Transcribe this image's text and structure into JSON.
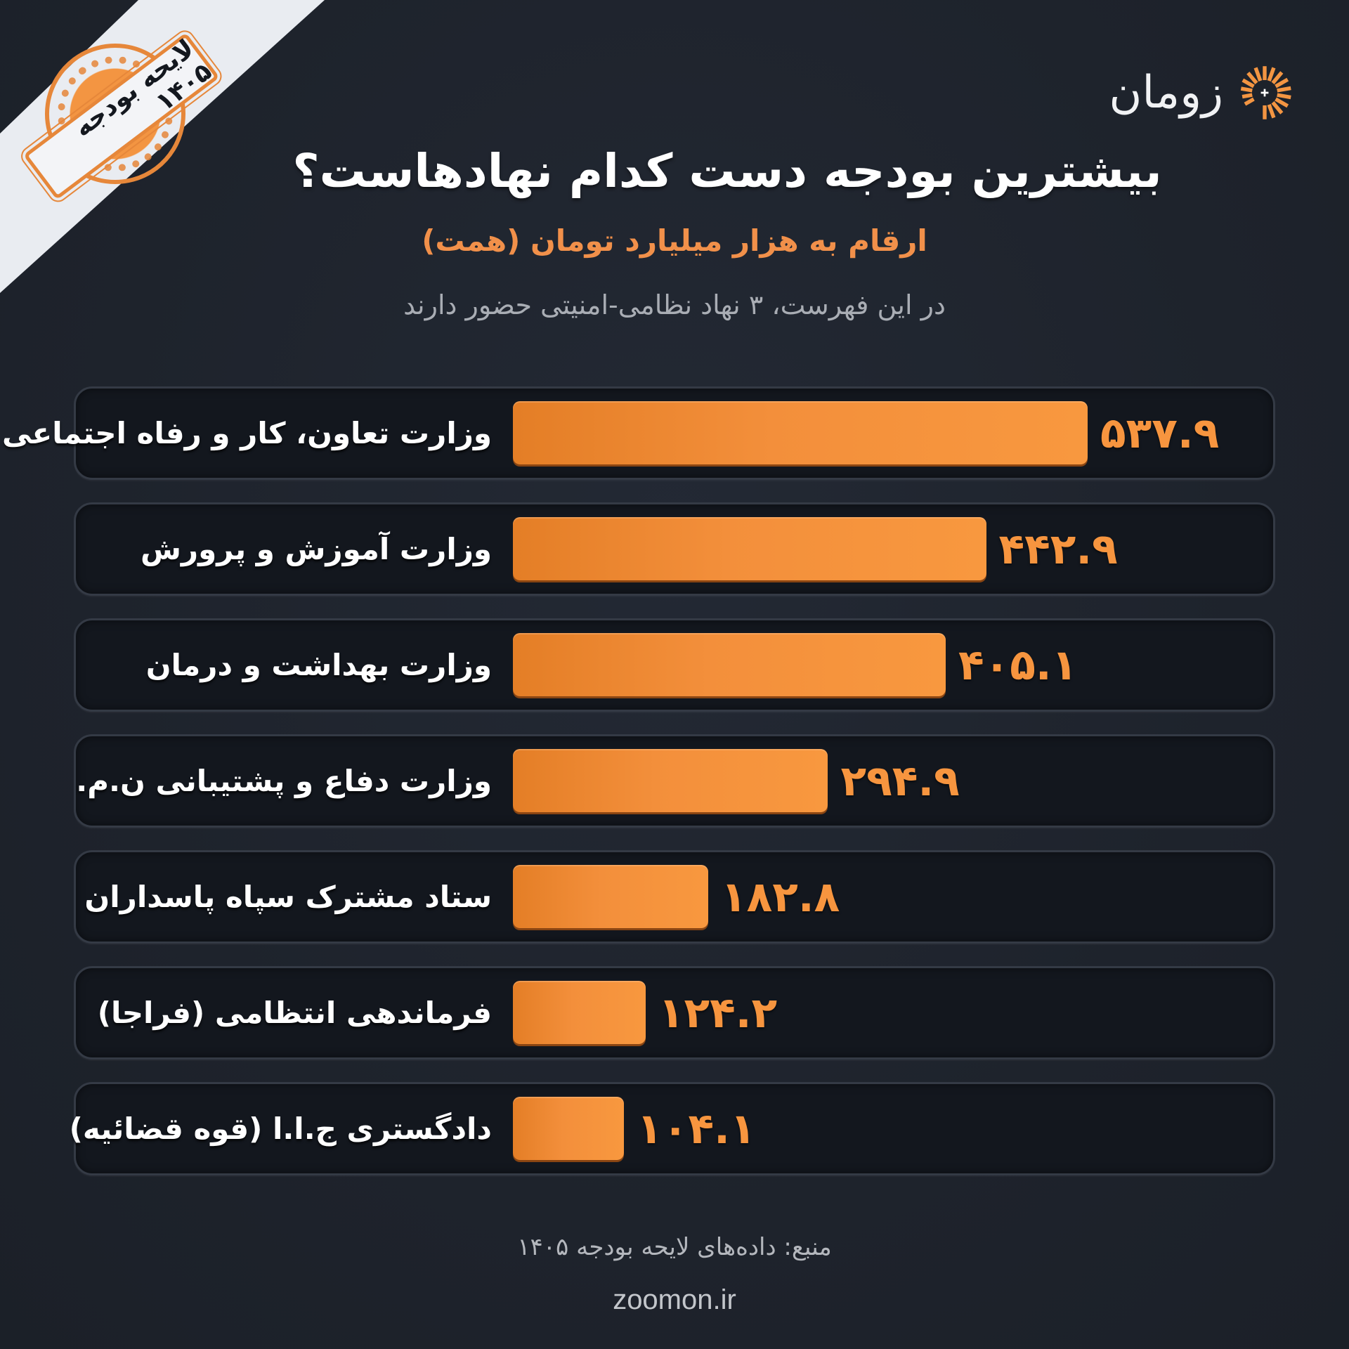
{
  "brand": {
    "logo_text": "زومان",
    "logo_icon": "sunburst-spiral-icon",
    "accent_color": "#f39542",
    "website": "zoomon.ir"
  },
  "stamp": {
    "label": "لایحه بودجه ۱۴۰۵"
  },
  "header": {
    "title": "بیشترین بودجه دست کدام نهادهاست؟",
    "subtitle": "ارقام به هزار میلیارد تومان (همت)",
    "note": "در این فهرست، ۳ نهاد نظامی-امنیتی حضور دارند"
  },
  "footer": {
    "source": "منبع: داده‌های لایحه بودجه ۱۴۰۵",
    "website": "zoomon.ir"
  },
  "rows": [
    {
      "label": "وزارت تعاون، کار و رفاه اجتماعی",
      "value_display": "۵۳۷.۹",
      "value": 537.9
    },
    {
      "label": "وزارت آموزش و پرورش",
      "value_display": "۴۴۲.۹",
      "value": 442.9
    },
    {
      "label": "وزارت بهداشت و درمان",
      "value_display": "۴۰۵.۱",
      "value": 405.1
    },
    {
      "label": "وزارت دفاع و پشتیبانی ن.م.",
      "value_display": "۲۹۴.۹",
      "value": 294.9
    },
    {
      "label": "ستاد مشترک سپاه پاسداران",
      "value_display": "۱۸۲.۸",
      "value": 182.8
    },
    {
      "label": "فرماندهی انتظامی (فراجا)",
      "value_display": "۱۲۴.۲",
      "value": 124.2
    },
    {
      "label": "دادگستری ج.ا.ا (قوه قضائیه)",
      "value_display": "۱۰۴.۱",
      "value": 104.1
    }
  ],
  "chart_data": {
    "type": "bar",
    "orientation": "horizontal",
    "title": "بیشترین بودجه دست کدام نهادهاست؟",
    "subtitle": "ارقام به هزار میلیارد تومان (همت)",
    "annotation": "در این فهرست، ۳ نهاد نظامی-امنیتی حضور دارند",
    "xlabel": "",
    "ylabel": "",
    "unit": "همت (هزار میلیارد تومان)",
    "categories": [
      "وزارت تعاون، کار و رفاه اجتماعی",
      "وزارت آموزش و پرورش",
      "وزارت بهداشت و درمان",
      "وزارت دفاع و پشتیبانی ن.م.",
      "ستاد مشترک سپاه پاسداران",
      "فرماندهی انتظامی (فراجا)",
      "دادگستری ج.ا.ا (قوه قضائیه)"
    ],
    "values": [
      537.9,
      442.9,
      405.1,
      294.9,
      182.8,
      124.2,
      104.1
    ],
    "bar_color": "#f39542",
    "grid": false,
    "legend": null,
    "source": "منبع: داده‌های لایحه بودجه ۱۴۰۵"
  }
}
